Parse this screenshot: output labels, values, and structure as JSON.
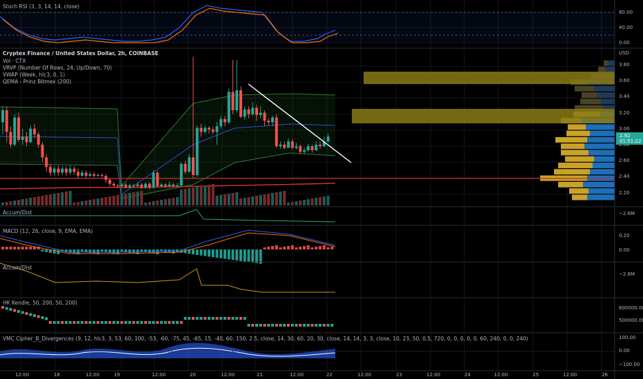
{
  "colors": {
    "bg": "#000000",
    "grid": "#16161c",
    "separator": "#2a2e39",
    "up": "#26a69a",
    "down": "#ef5350",
    "label": "#b2b5be",
    "axis_text": "#b2b5be",
    "price_badge": "#26a69a",
    "stoch_k": "#2962ff",
    "stoch_d": "#ff6d00",
    "vwap": "#2f4fd6",
    "band": "#2e7d32",
    "qema": "#d32f2f",
    "trendline": "#ffffff",
    "vrvp_up": "#1e6fb8",
    "vrvp_down": "#c9a227",
    "vrvp_va_up": "#213a56",
    "vrvp_va_down": "#4a4325",
    "poc": "#8a7a14",
    "accum": "#26a69a",
    "accum2": "#c79a1e"
  },
  "panes": {
    "stoch": {
      "label": "Stoch RSI (3, 3, 14, 14, close)",
      "axis": [
        "80.00",
        "40.00",
        "0.00"
      ]
    },
    "main": {
      "symbol": "Cryptex Finance / United States Dollar, 2h, COINBASE",
      "indicators": [
        "Vol · CTX",
        "VRVP (Number Of Rows, 24, Up/Down, 70)",
        "VWAP (Week, hlc3, 0, 1)",
        "QEMA - Prinz Bitmex (200)"
      ],
      "currency": "USD",
      "axis": [
        "3.80",
        "3.60",
        "3.40",
        "3.20",
        "3.00",
        "2.80",
        "2.60",
        "2.40",
        "2.20"
      ],
      "last_price": "2.92",
      "countdown": "01:51:22"
    },
    "accum1": {
      "label": "Accum/Dist",
      "axis": [
        "−2.6M"
      ]
    },
    "macd": {
      "label": "MACD (12, 26, close, 9, EMA, EMA)",
      "axis": [
        "0.20",
        "0.00"
      ]
    },
    "accum2": {
      "label": "Accum/Dist",
      "axis": [
        "−2.6M"
      ]
    },
    "hk": {
      "label": "HK Kendle, 50, 200, 50, 200)",
      "axis": [
        "600000.00",
        "500000.00"
      ]
    },
    "vmc": {
      "label": "VMC Cipher_B_Divergences (9, 12, hlc3, 3, 53, 60, 100, -53, -60, -75, 45, -65, 15, -40, 60, 150, 2.5, close, 14, 30, 60, 20, 30, close, 14, 14, 3, 3, close, 10, 23, 50, 0.5, 720, 0, 0, 0, 0, 0, 60, 240, 0, 0, 240)",
      "axis": [
        "100.00",
        "0.00",
        "−100.00"
      ]
    }
  },
  "time_axis": [
    "12:00",
    "18",
    "12:00",
    "19",
    "12:00",
    "20",
    "12:00",
    "21",
    "12:00",
    "22",
    "12:00",
    "23",
    "12:00",
    "24",
    "12:00",
    "25",
    "12:00",
    "26"
  ],
  "candles": [
    [
      3.1,
      3.25,
      3.3,
      2.95
    ],
    [
      3.25,
      2.98,
      3.3,
      2.85
    ],
    [
      2.98,
      2.82,
      3.05,
      2.78
    ],
    [
      2.82,
      3.16,
      3.2,
      2.8
    ],
    [
      3.16,
      2.88,
      3.22,
      2.85
    ],
    [
      2.88,
      2.92,
      3.02,
      2.82
    ],
    [
      2.92,
      2.85,
      2.98,
      2.8
    ],
    [
      2.85,
      3.02,
      3.06,
      2.84
    ],
    [
      3.02,
      2.95,
      3.08,
      2.9
    ],
    [
      2.95,
      2.82,
      2.98,
      2.78
    ],
    [
      2.82,
      2.66,
      2.85,
      2.6
    ],
    [
      2.66,
      2.54,
      2.7,
      2.48
    ],
    [
      2.54,
      2.47,
      2.58,
      2.43
    ],
    [
      2.47,
      2.52,
      2.55,
      2.43
    ],
    [
      2.52,
      2.47,
      2.56,
      2.43
    ],
    [
      2.47,
      2.52,
      2.55,
      2.44
    ],
    [
      2.52,
      2.47,
      2.55,
      2.43
    ],
    [
      2.47,
      2.52,
      2.56,
      2.44
    ],
    [
      2.52,
      2.48,
      2.55,
      2.44
    ],
    [
      2.48,
      2.43,
      2.52,
      2.4
    ],
    [
      2.43,
      2.47,
      2.5,
      2.42
    ],
    [
      2.47,
      2.43,
      2.5,
      2.4
    ],
    [
      2.43,
      2.45,
      2.48,
      2.42
    ],
    [
      2.45,
      2.43,
      2.48,
      2.41
    ],
    [
      2.43,
      2.44,
      2.46,
      2.42
    ],
    [
      2.44,
      2.43,
      2.46,
      2.41
    ],
    [
      2.43,
      2.38,
      2.45,
      2.34
    ],
    [
      2.38,
      2.33,
      2.4,
      2.3
    ],
    [
      2.33,
      2.31,
      2.35,
      2.29
    ],
    [
      2.31,
      2.3,
      2.33,
      2.28
    ],
    [
      2.3,
      2.32,
      2.34,
      2.29
    ],
    [
      2.32,
      2.29,
      2.34,
      2.27
    ],
    [
      2.29,
      2.31,
      2.33,
      2.28
    ],
    [
      2.31,
      2.3,
      2.33,
      2.28
    ],
    [
      2.3,
      2.32,
      2.35,
      2.29
    ],
    [
      2.32,
      2.28,
      2.34,
      2.26
    ],
    [
      2.28,
      2.33,
      2.35,
      2.27
    ],
    [
      2.33,
      2.28,
      2.35,
      2.26
    ],
    [
      2.28,
      2.47,
      2.5,
      2.27
    ],
    [
      2.47,
      2.3,
      2.49,
      2.29
    ],
    [
      2.3,
      2.32,
      2.34,
      2.29
    ],
    [
      2.32,
      2.3,
      2.34,
      2.28
    ],
    [
      2.3,
      2.32,
      2.36,
      2.29
    ],
    [
      2.32,
      2.3,
      2.34,
      2.29
    ],
    [
      2.3,
      2.31,
      2.34,
      2.29
    ],
    [
      2.31,
      2.58,
      2.6,
      2.3
    ],
    [
      2.58,
      2.48,
      2.62,
      2.45
    ],
    [
      2.48,
      2.66,
      2.7,
      2.47
    ],
    [
      2.66,
      2.44,
      3.92,
      2.4
    ],
    [
      2.44,
      3.03,
      3.06,
      2.42
    ],
    [
      3.03,
      2.98,
      3.08,
      2.92
    ],
    [
      2.98,
      3.03,
      3.06,
      2.96
    ],
    [
      3.03,
      3.01,
      3.05,
      2.96
    ],
    [
      3.01,
      2.98,
      3.04,
      2.95
    ],
    [
      2.98,
      3.05,
      3.1,
      2.82
    ],
    [
      3.05,
      3.14,
      3.18,
      3.02
    ],
    [
      3.14,
      3.1,
      3.18,
      3.05
    ],
    [
      3.1,
      3.48,
      3.52,
      3.08
    ],
    [
      3.48,
      3.25,
      3.88,
      3.2
    ],
    [
      3.25,
      3.5,
      3.88,
      3.22
    ],
    [
      3.5,
      3.17,
      3.55,
      3.15
    ],
    [
      3.17,
      3.26,
      3.3,
      3.13
    ],
    [
      3.26,
      3.2,
      3.3,
      3.15
    ],
    [
      3.2,
      3.28,
      3.35,
      3.18
    ],
    [
      3.28,
      3.19,
      3.32,
      3.12
    ],
    [
      3.19,
      3.22,
      3.3,
      3.15
    ],
    [
      3.22,
      3.12,
      3.25,
      3.05
    ],
    [
      3.12,
      3.1,
      3.15,
      3.06
    ],
    [
      3.1,
      3.16,
      3.18,
      3.05
    ],
    [
      3.16,
      2.8,
      3.2,
      2.78
    ],
    [
      2.8,
      2.82,
      2.86,
      2.77
    ],
    [
      2.82,
      2.78,
      2.86,
      2.76
    ],
    [
      2.78,
      2.86,
      2.9,
      2.78
    ],
    [
      2.86,
      2.78,
      2.89,
      2.76
    ],
    [
      2.78,
      2.8,
      2.84,
      2.76
    ],
    [
      2.8,
      2.73,
      2.82,
      2.7
    ],
    [
      2.73,
      2.75,
      2.78,
      2.71
    ],
    [
      2.75,
      2.8,
      2.83,
      2.73
    ],
    [
      2.8,
      2.75,
      2.82,
      2.72
    ],
    [
      2.75,
      2.82,
      2.86,
      2.74
    ],
    [
      2.82,
      2.8,
      2.86,
      2.77
    ],
    [
      2.8,
      2.86,
      2.92,
      2.79
    ],
    [
      2.86,
      2.92,
      2.96,
      2.84
    ]
  ]
}
